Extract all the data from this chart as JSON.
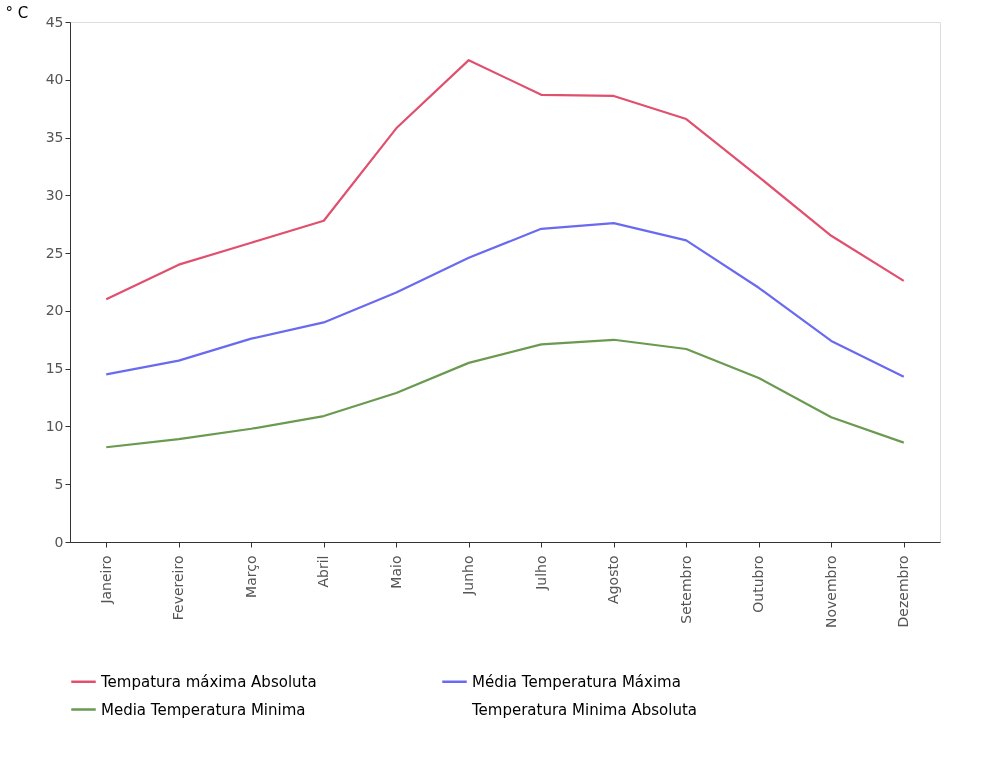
{
  "chart_data": {
    "type": "line",
    "ylabel": "° C",
    "categories": [
      "Janeiro",
      "Fevereiro",
      "Março",
      "Abril",
      "Maio",
      "Junho",
      "Julho",
      "Agosto",
      "Setembro",
      "Outubro",
      "Novembro",
      "Dezembro"
    ],
    "series": [
      {
        "name": "Tempatura máxima Absoluta",
        "color": "#e0506e",
        "values": [
          21.0,
          24.0,
          25.9,
          27.8,
          35.8,
          41.7,
          38.7,
          38.6,
          36.6,
          31.6,
          26.5,
          22.6
        ]
      },
      {
        "name": "Média Temperatura Máxima",
        "color": "#6a6af0",
        "values": [
          14.5,
          15.7,
          17.6,
          19.0,
          21.6,
          24.6,
          27.1,
          27.6,
          26.1,
          22.0,
          17.4,
          14.3
        ]
      },
      {
        "name": "Media Temperatura Minima",
        "color": "#6a9a50",
        "values": [
          8.2,
          8.9,
          9.8,
          10.9,
          12.9,
          15.5,
          17.1,
          17.5,
          16.7,
          14.2,
          10.8,
          8.6
        ]
      },
      {
        "name": "Temperatura Minima Absoluta",
        "values": [
          null,
          null,
          null,
          null,
          null,
          null,
          null,
          null,
          null,
          null,
          null,
          null
        ]
      }
    ],
    "ylim": [
      0,
      45
    ],
    "yticks": [
      0,
      5,
      10,
      15,
      20,
      25,
      30,
      35,
      40,
      45
    ],
    "grid": false,
    "legend": "bottom",
    "marker": "none",
    "line_style": "solid"
  }
}
